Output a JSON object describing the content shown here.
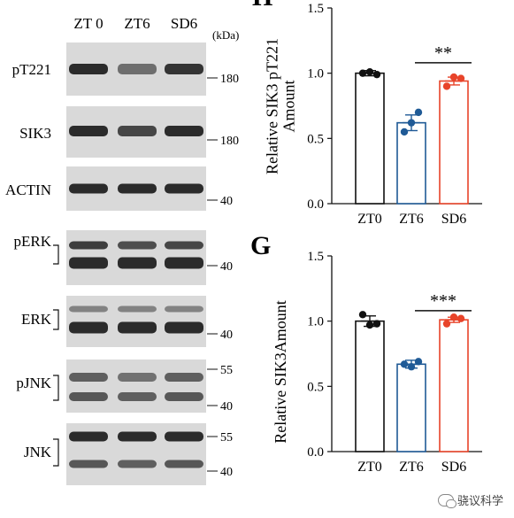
{
  "blot": {
    "lanes": [
      "ZT 0",
      "ZT6",
      "SD6"
    ],
    "unit": "(kDa)",
    "rows": [
      {
        "label": "pT221",
        "markers": [
          "180"
        ]
      },
      {
        "label": "SIK3",
        "markers": [
          "180"
        ]
      },
      {
        "label": "ACTIN",
        "markers": [
          "40"
        ]
      },
      {
        "label": "pERK",
        "markers": [
          "40"
        ]
      },
      {
        "label": "ERK",
        "markers": [
          "40"
        ]
      },
      {
        "label": "pJNK",
        "markers": [
          "55",
          "40"
        ]
      },
      {
        "label": "JNK",
        "markers": [
          "55",
          "40"
        ]
      }
    ]
  },
  "colors": {
    "zt0": "#111111",
    "zt6": "#1f5a96",
    "sd6": "#e8442a",
    "axis": "#111111",
    "band": "#2b2b2b",
    "membrane": "#d9d9d9"
  },
  "panel_letters": {
    "top": "H",
    "bottom": "G"
  },
  "chart_data": [
    {
      "type": "bar",
      "ylabel": "Relative SIK3 pT221 Amount",
      "categories": [
        "ZT0",
        "ZT6",
        "SD6"
      ],
      "values": [
        1.0,
        0.62,
        0.94
      ],
      "errors": [
        0.02,
        0.06,
        0.03
      ],
      "points": [
        [
          1.0,
          1.01,
          0.99
        ],
        [
          0.55,
          0.62,
          0.7
        ],
        [
          0.9,
          0.97,
          0.96
        ]
      ],
      "ylim": [
        0,
        1.5
      ],
      "yticks": [
        "0.0",
        "0.5",
        "1.0",
        "1.5"
      ],
      "significance": {
        "from": 1,
        "to": 2,
        "label": "**"
      }
    },
    {
      "type": "bar",
      "ylabel": "Relative SIK3Amount",
      "categories": [
        "ZT0",
        "ZT6",
        "SD6"
      ],
      "values": [
        1.0,
        0.67,
        1.01
      ],
      "errors": [
        0.04,
        0.03,
        0.02
      ],
      "points": [
        [
          1.05,
          0.97,
          0.98
        ],
        [
          0.67,
          0.65,
          0.69
        ],
        [
          0.98,
          1.03,
          1.02
        ]
      ],
      "ylim": [
        0,
        1.5
      ],
      "yticks": [
        "0.0",
        "0.5",
        "1.0",
        "1.5"
      ],
      "significance": {
        "from": 1,
        "to": 2,
        "label": "***"
      }
    }
  ],
  "watermark": "骁议科学"
}
